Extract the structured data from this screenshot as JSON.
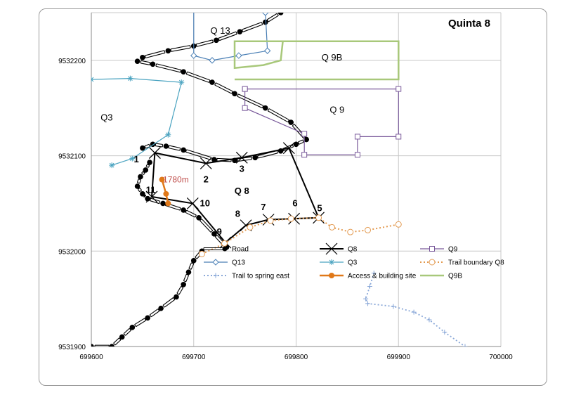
{
  "chart_data": {
    "type": "scatter",
    "title": "Quinta 8",
    "xlim": [
      699600,
      700000
    ],
    "ylim": [
      9531900,
      9532250
    ],
    "x_ticks": [
      "699600",
      "699700",
      "699800",
      "699900",
      "700000"
    ],
    "y_ticks": [
      "9531900",
      "9532000",
      "9532100",
      "9532200"
    ],
    "grid": true,
    "zone_labels": [
      {
        "text": "Q 13",
        "x": 699726,
        "y": 9532228
      },
      {
        "text": "Q 9B",
        "x": 699835,
        "y": 9532200
      },
      {
        "text": "Q 9",
        "x": 699840,
        "y": 9532145
      },
      {
        "text": "Q3",
        "x": 699615,
        "y": 9532137
      },
      {
        "text": "Q 8",
        "x": 699747,
        "y": 9532060
      }
    ],
    "point_labels": [
      {
        "text": "1",
        "x": 699644,
        "y": 9532093
      },
      {
        "text": "2",
        "x": 699712,
        "y": 9532072
      },
      {
        "text": "3",
        "x": 699747,
        "y": 9532083
      },
      {
        "text": "5",
        "x": 699823,
        "y": 9532042
      },
      {
        "text": "6",
        "x": 699799,
        "y": 9532047
      },
      {
        "text": "7",
        "x": 699768,
        "y": 9532043
      },
      {
        "text": "8",
        "x": 699743,
        "y": 9532036
      },
      {
        "text": "9",
        "x": 699725,
        "y": 9532017
      },
      {
        "text": "10",
        "x": 699711,
        "y": 9532047
      },
      {
        "text": "11",
        "x": 699658,
        "y": 9532061
      }
    ],
    "annotation": {
      "text": "1780m",
      "x": 699670,
      "y": 9532072
    },
    "series": [
      {
        "name": "Road",
        "color": "#000000",
        "style": "road",
        "x": [
          699650,
          699660,
          699673,
          699690,
          699720,
          699740,
          699760,
          699785,
          699800,
          699810
        ],
        "y": [
          9532108,
          9532112,
          9532110,
          9532106,
          9532096,
          9532095,
          9532098,
          9532105,
          9532112,
          9532117
        ]
      },
      {
        "name": "Road",
        "color": "#000000",
        "style": "road",
        "x": [
          699810,
          699795,
          699770,
          699740,
          699718,
          699690,
          699660,
          699645
        ],
        "y": [
          9532117,
          9532135,
          9532150,
          9532165,
          9532177,
          9532188,
          9532196,
          9532199
        ]
      },
      {
        "name": "Road",
        "color": "#000000",
        "style": "road",
        "x": [
          699650,
          699675,
          699700,
          699722,
          699745,
          699770,
          699785
        ],
        "y": [
          9532203,
          9532210,
          9532215,
          9532221,
          9532230,
          9532240,
          9532250
        ]
      },
      {
        "name": "Road",
        "color": "#000000",
        "style": "road",
        "x": [
          699657,
          699653,
          699648,
          699645,
          699650,
          699655
        ],
        "y": [
          9532093,
          9532085,
          9532078,
          9532068,
          9532060,
          9532055
        ]
      },
      {
        "name": "Road",
        "color": "#000000",
        "style": "road",
        "x": [
          699655,
          699670,
          699690,
          699705,
          699720,
          699732
        ],
        "y": [
          9532055,
          9532050,
          9532043,
          9532035,
          9532018,
          9532004
        ]
      },
      {
        "name": "Road",
        "color": "#000000",
        "style": "road",
        "x": [
          699708,
          699700,
          699695,
          699690,
          699683,
          699668,
          699655,
          699640,
          699630,
          699620,
          699600
        ],
        "y": [
          9532000,
          9531990,
          9531978,
          9531965,
          9531952,
          9531940,
          9531930,
          9531920,
          9531910,
          9531900,
          9531900
        ]
      },
      {
        "name": "Q8",
        "color": "#000000",
        "style": "cross",
        "x": [
          699662,
          699712,
          699747,
          699793,
          699822,
          699798,
          699773,
          699751,
          699731,
          699699,
          699659,
          699662
        ],
        "y": [
          9532103,
          9532092,
          9532098,
          9532108,
          9532035,
          9532034,
          9532033,
          9532027,
          9532009,
          9532050,
          9532057,
          9532103
        ]
      },
      {
        "name": "Q9",
        "color": "#7a5a9b",
        "style": "square",
        "x": [
          699750,
          699900,
          699900,
          699860,
          699860,
          699808,
          699808,
          699750,
          699750
        ],
        "y": [
          9532170,
          9532170,
          9532120,
          9532120,
          9532101,
          9532101,
          9532123,
          9532150,
          9532170
        ]
      },
      {
        "name": "Q13",
        "color": "#4a7fb5",
        "style": "diamond",
        "x": [
          699700,
          699700,
          699718,
          699744,
          699772,
          699770
        ],
        "y": [
          9532255,
          9532205,
          9532200,
          9532205,
          9532210,
          9532250
        ]
      },
      {
        "name": "Q3",
        "color": "#4aa3c0",
        "style": "star",
        "x": [
          699600,
          699638,
          699688,
          699675,
          699640,
          699620
        ],
        "y": [
          9532180,
          9532181,
          9532177,
          9532122,
          9532097,
          9532090
        ]
      },
      {
        "name": "Trail boundary Q8",
        "color": "#e39a50",
        "style": "dotcircle",
        "x": [
          699708,
          699730,
          699755,
          699775,
          699795,
          699822,
          699835,
          699853,
          699870,
          699900
        ],
        "y": [
          9531997,
          9532008,
          9532025,
          9532032,
          9532034,
          9532035,
          9532025,
          9532020,
          9532022,
          9532028
        ]
      },
      {
        "name": "Trail to spring east",
        "color": "#8aa8d8",
        "style": "dotplus",
        "x": [
          699876,
          699872,
          699868,
          699870,
          699895,
          699915,
          699930,
          699945,
          699965
        ],
        "y": [
          9531977,
          9531963,
          9531950,
          9531945,
          9531942,
          9531936,
          9531928,
          9531915,
          9531900
        ]
      },
      {
        "name": "Access & building site",
        "color": "#e07818",
        "style": "orange",
        "x": [
          699669,
          699673,
          699675
        ],
        "y": [
          9532075,
          9532060,
          9532050
        ]
      },
      {
        "name": "Q9B",
        "color": "#a8c87a",
        "style": "plain",
        "x": [
          699740,
          699900,
          699900,
          699740,
          699740,
          699768,
          699785,
          699787,
          699900
        ],
        "y": [
          9532180,
          9532180,
          9532220,
          9532220,
          9532192,
          9532195,
          9532200,
          9532220,
          9532220
        ]
      }
    ],
    "legend": [
      [
        "Road",
        "Q8",
        "Q9"
      ],
      [
        "Q13",
        "Q3",
        "Trail boundary Q8"
      ],
      [
        "Trail to spring east",
        "Access & building site",
        "Q9B"
      ]
    ]
  }
}
